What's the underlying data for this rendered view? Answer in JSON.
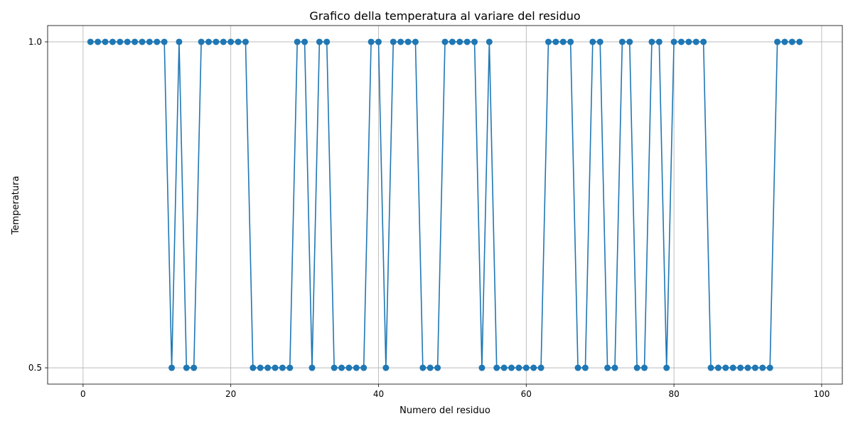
{
  "chart_data": {
    "type": "line",
    "title": "Grafico della temperatura al variare del residuo",
    "xlabel": "Numero del residuo",
    "ylabel": "Temperatura",
    "xlim": [
      -4.8,
      102.8
    ],
    "ylim": [
      0.475,
      1.025
    ],
    "xticks": [
      0,
      20,
      40,
      60,
      80,
      100
    ],
    "yticks": [
      0.5,
      1.0
    ],
    "ytick_labels": [
      "0.5",
      "1.0"
    ],
    "grid": true,
    "series": [
      {
        "color": "#1f77b4",
        "marker": "circle",
        "x": [
          1,
          2,
          3,
          4,
          5,
          6,
          7,
          8,
          9,
          10,
          11,
          12,
          13,
          14,
          15,
          16,
          17,
          18,
          19,
          20,
          21,
          22,
          23,
          24,
          25,
          26,
          27,
          28,
          29,
          30,
          31,
          32,
          33,
          34,
          35,
          36,
          37,
          38,
          39,
          40,
          41,
          42,
          43,
          44,
          45,
          46,
          47,
          48,
          49,
          50,
          51,
          52,
          53,
          54,
          55,
          56,
          57,
          58,
          59,
          60,
          61,
          62,
          63,
          64,
          65,
          66,
          67,
          68,
          69,
          70,
          71,
          72,
          73,
          74,
          75,
          76,
          77,
          78,
          79,
          80,
          81,
          82,
          83,
          84,
          85,
          86,
          87,
          88,
          89,
          90,
          91,
          92,
          93,
          94,
          95,
          96,
          97
        ],
        "y": [
          1.0,
          1.0,
          1.0,
          1.0,
          1.0,
          1.0,
          1.0,
          1.0,
          1.0,
          1.0,
          1.0,
          0.5,
          1.0,
          0.5,
          0.5,
          1.0,
          1.0,
          1.0,
          1.0,
          1.0,
          1.0,
          1.0,
          0.5,
          0.5,
          0.5,
          0.5,
          0.5,
          0.5,
          1.0,
          1.0,
          0.5,
          1.0,
          1.0,
          0.5,
          0.5,
          0.5,
          0.5,
          0.5,
          1.0,
          1.0,
          0.5,
          1.0,
          1.0,
          1.0,
          1.0,
          0.5,
          0.5,
          0.5,
          1.0,
          1.0,
          1.0,
          1.0,
          1.0,
          0.5,
          1.0,
          0.5,
          0.5,
          0.5,
          0.5,
          0.5,
          0.5,
          0.5,
          1.0,
          1.0,
          1.0,
          1.0,
          0.5,
          0.5,
          1.0,
          1.0,
          0.5,
          0.5,
          1.0,
          1.0,
          0.5,
          0.5,
          1.0,
          1.0,
          0.5,
          1.0,
          1.0,
          1.0,
          1.0,
          1.0,
          0.5,
          0.5,
          0.5,
          0.5,
          0.5,
          0.5,
          0.5,
          0.5,
          0.5,
          1.0,
          1.0,
          1.0,
          1.0
        ]
      }
    ]
  }
}
